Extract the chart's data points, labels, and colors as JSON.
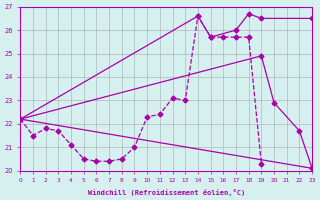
{
  "xlabel": "Windchill (Refroidissement éolien,°C)",
  "bg_color": "#d6f0f0",
  "line_color": "#aa00aa",
  "xlim": [
    0,
    23
  ],
  "ylim": [
    20,
    27
  ],
  "line1_x": [
    0,
    1,
    2,
    3,
    4,
    5,
    6,
    7,
    8,
    9,
    10,
    11,
    12,
    13,
    14,
    15,
    16,
    17,
    18,
    19
  ],
  "line1_y": [
    22.2,
    21.5,
    21.8,
    21.7,
    21.1,
    20.5,
    20.4,
    20.4,
    20.5,
    21.0,
    22.3,
    22.4,
    23.1,
    23.0,
    26.6,
    25.7,
    25.7,
    25.7,
    25.7,
    20.3
  ],
  "line2_x": [
    0,
    23
  ],
  "line2_y": [
    22.2,
    20.1
  ],
  "line3_x": [
    0,
    14,
    15,
    17,
    18,
    19,
    23
  ],
  "line3_y": [
    22.2,
    26.6,
    25.7,
    26.0,
    26.7,
    26.5,
    26.5
  ],
  "line4_x": [
    0,
    19,
    20,
    22,
    23
  ],
  "line4_y": [
    22.2,
    24.9,
    22.9,
    21.7,
    20.1
  ]
}
